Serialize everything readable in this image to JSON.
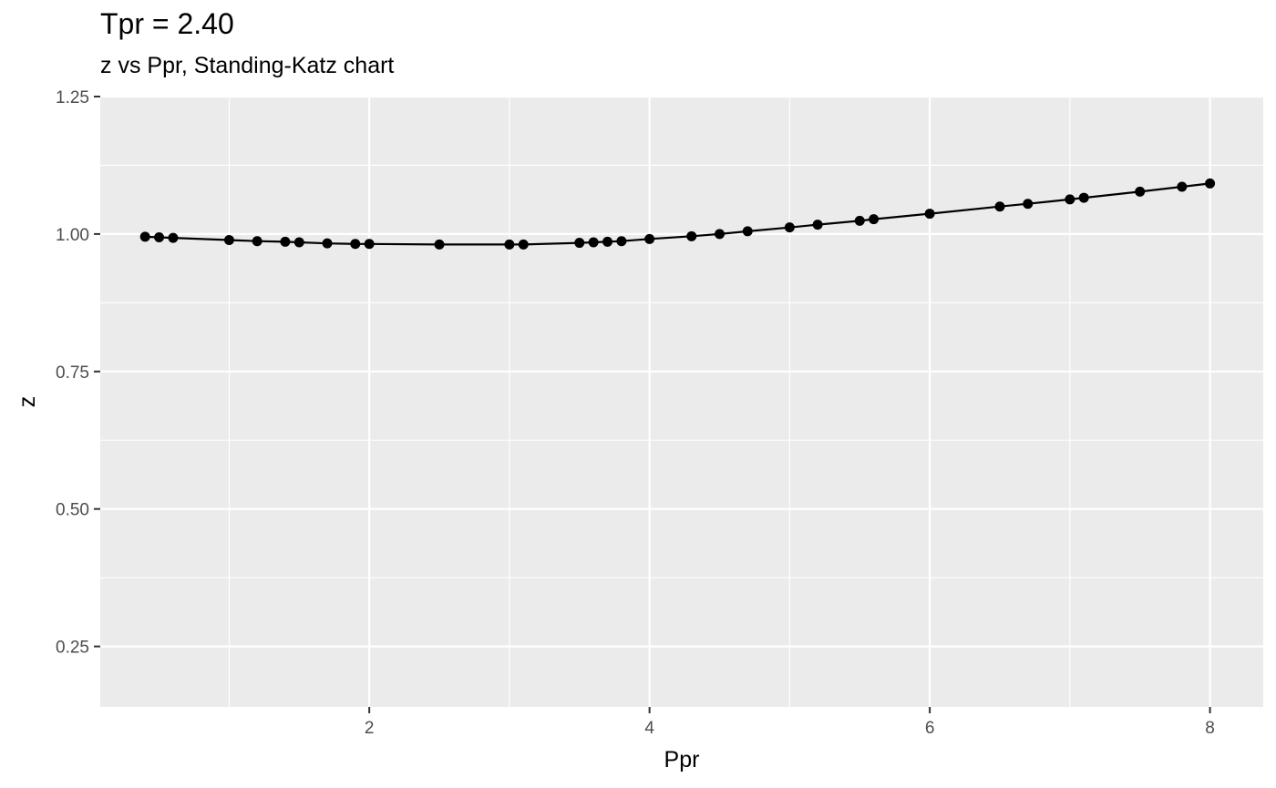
{
  "chart_data": {
    "type": "line",
    "title": "Tpr = 2.40",
    "subtitle": "z vs Ppr, Standing-Katz chart",
    "xlabel": "Ppr",
    "ylabel": "z",
    "xlim": [
      0.08,
      8.38
    ],
    "ylim": [
      0.14,
      1.25
    ],
    "x_ticks": [
      2,
      4,
      6,
      8
    ],
    "x_tick_labels": [
      "2",
      "4",
      "6",
      "8"
    ],
    "y_ticks": [
      0.25,
      0.5,
      0.75,
      1.0,
      1.25
    ],
    "y_tick_labels": [
      "0.25",
      "0.50",
      "0.75",
      "1.00",
      "1.25"
    ],
    "grid": true,
    "series": [
      {
        "x": [
          0.4,
          0.5,
          0.6,
          1.0,
          1.2,
          1.4,
          1.5,
          1.7,
          1.9,
          2.0,
          2.5,
          3.0,
          3.1,
          3.5,
          3.6,
          3.7,
          3.8,
          4.0,
          4.3,
          4.5,
          4.7,
          5.0,
          5.2,
          5.5,
          5.6,
          6.0,
          6.5,
          6.7,
          7.0,
          7.1,
          7.5,
          7.8,
          8.0
        ],
        "values": [
          0.995,
          0.994,
          0.993,
          0.989,
          0.987,
          0.986,
          0.985,
          0.983,
          0.982,
          0.982,
          0.981,
          0.981,
          0.981,
          0.984,
          0.985,
          0.986,
          0.987,
          0.991,
          0.996,
          1.0,
          1.005,
          1.012,
          1.017,
          1.024,
          1.027,
          1.037,
          1.05,
          1.055,
          1.063,
          1.066,
          1.077,
          1.086,
          1.092
        ],
        "color": "#000000"
      }
    ],
    "colors": {
      "panel": "#ebebeb",
      "grid": "#ffffff",
      "line": "#000000"
    }
  }
}
